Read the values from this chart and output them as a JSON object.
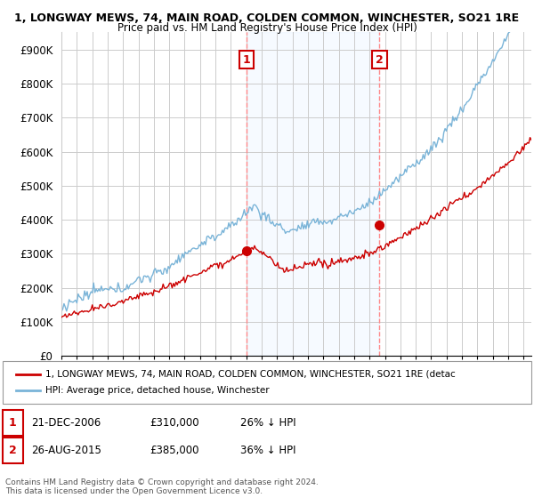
{
  "title1": "1, LONGWAY MEWS, 74, MAIN ROAD, COLDEN COMMON, WINCHESTER, SO21 1RE",
  "title2": "Price paid vs. HM Land Registry's House Price Index (HPI)",
  "ylabel_ticks": [
    "£0",
    "£100K",
    "£200K",
    "£300K",
    "£400K",
    "£500K",
    "£600K",
    "£700K",
    "£800K",
    "£900K"
  ],
  "ytick_values": [
    0,
    100000,
    200000,
    300000,
    400000,
    500000,
    600000,
    700000,
    800000,
    900000
  ],
  "ylim": [
    0,
    950000
  ],
  "xlim_start": 1995.3,
  "xlim_end": 2025.5,
  "hpi_color": "#7ab4d8",
  "price_color": "#cc0000",
  "shade_color": "#ddeeff",
  "marker1_x": 2007.0,
  "marker1_y": 310000,
  "marker2_x": 2015.65,
  "marker2_y": 385000,
  "legend_label1": "1, LONGWAY MEWS, 74, MAIN ROAD, COLDEN COMMON, WINCHESTER, SO21 1RE (detac",
  "legend_label2": "HPI: Average price, detached house, Winchester",
  "footer": "Contains HM Land Registry data © Crown copyright and database right 2024.\nThis data is licensed under the Open Government Licence v3.0.",
  "background_color": "#ffffff",
  "grid_color": "#cccccc"
}
